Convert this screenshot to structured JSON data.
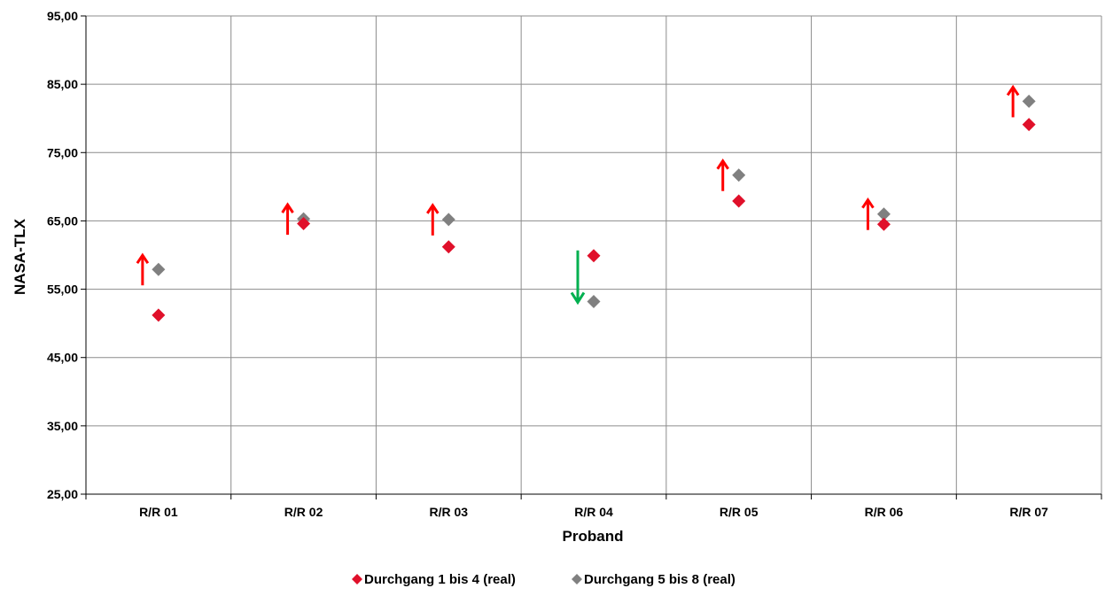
{
  "chart_data": {
    "type": "scatter",
    "xlabel": "Proband",
    "ylabel": "NASA-TLX",
    "categories": [
      "R/R 01",
      "R/R 02",
      "R/R 03",
      "R/R 04",
      "R/R 05",
      "R/R 06",
      "R/R 07"
    ],
    "ylim": [
      25,
      95
    ],
    "yticks": [
      "25,00",
      "35,00",
      "45,00",
      "55,00",
      "65,00",
      "75,00",
      "85,00",
      "95,00"
    ],
    "ytick_values": [
      25,
      35,
      45,
      55,
      65,
      75,
      85,
      95
    ],
    "grid": true,
    "legend_position": "bottom",
    "series": [
      {
        "name": "Durchgang 1 bis 4 (real)",
        "color": "#e0102a",
        "values": [
          51.2,
          64.6,
          61.2,
          59.9,
          67.9,
          64.5,
          79.1
        ]
      },
      {
        "name": "Durchgang 5 bis 8 (real)",
        "color": "#808080",
        "values": [
          57.9,
          65.3,
          65.2,
          53.2,
          71.7,
          66.0,
          82.5
        ]
      }
    ],
    "change_arrows": [
      {
        "category": "R/R 01",
        "direction": "up",
        "color": "#ff0000"
      },
      {
        "category": "R/R 02",
        "direction": "up",
        "color": "#ff0000"
      },
      {
        "category": "R/R 03",
        "direction": "up",
        "color": "#ff0000"
      },
      {
        "category": "R/R 04",
        "direction": "down",
        "color": "#00b050"
      },
      {
        "category": "R/R 05",
        "direction": "up",
        "color": "#ff0000"
      },
      {
        "category": "R/R 06",
        "direction": "up",
        "color": "#ff0000"
      },
      {
        "category": "R/R 07",
        "direction": "up",
        "color": "#ff0000"
      }
    ]
  }
}
